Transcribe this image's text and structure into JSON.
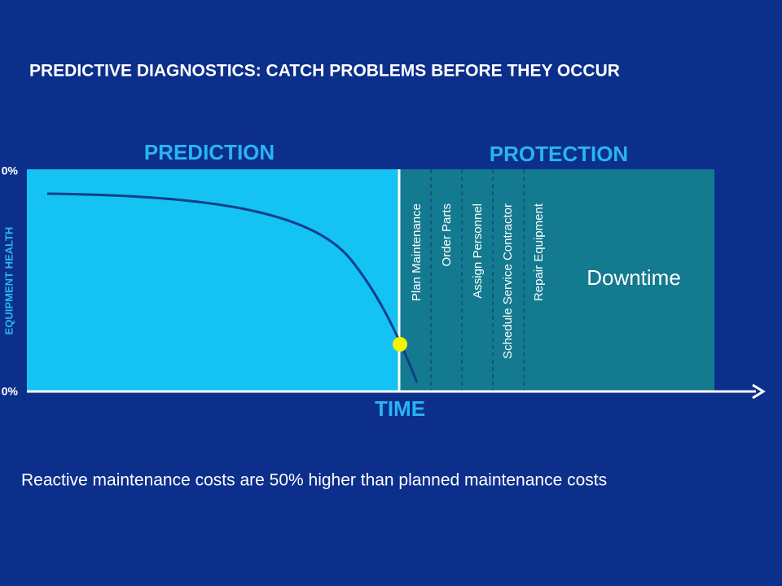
{
  "title": "PREDICTIVE DIAGNOSTICS: CATCH PROBLEMS BEFORE THEY OCCUR",
  "sections": {
    "prediction": "PREDICTION",
    "protection": "PROTECTION"
  },
  "y_axis": {
    "label": "EQUIPMENT HEALTH",
    "top": "0%",
    "bottom": "0%"
  },
  "x_axis": {
    "label": "TIME"
  },
  "steps": [
    "Plan Maintenance",
    "Order Parts",
    "Assign Personnel",
    "Schedule Service Contractor",
    "Repair Equipment"
  ],
  "downtime": "Downtime",
  "footer": "Reactive maintenance costs are 50% higher than planned maintenance costs"
}
